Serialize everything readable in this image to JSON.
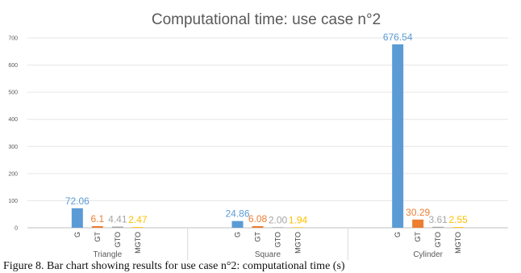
{
  "chart_data": {
    "type": "bar",
    "title": "Computational time: use case n°2",
    "xlabel": "",
    "ylabel": "",
    "ylim": [
      0,
      700
    ],
    "yticks": [
      0,
      100,
      200,
      300,
      400,
      500,
      600,
      700
    ],
    "grid": true,
    "legend": "none",
    "groups": [
      {
        "name": "Triangle",
        "bars": [
          {
            "label": "G",
            "value": 72.06,
            "display": "72.06"
          },
          {
            "label": "GT",
            "value": 6.1,
            "display": "6.1"
          },
          {
            "label": "GTO",
            "value": 4.41,
            "display": "4.41"
          },
          {
            "label": "MGTO",
            "value": 2.47,
            "display": "2.47"
          }
        ]
      },
      {
        "name": "Square",
        "bars": [
          {
            "label": "G",
            "value": 24.86,
            "display": "24.86"
          },
          {
            "label": "GT",
            "value": 6.08,
            "display": "6.08"
          },
          {
            "label": "GTO",
            "value": 2.0,
            "display": "2.00"
          },
          {
            "label": "MGTO",
            "value": 1.94,
            "display": "1.94"
          }
        ]
      },
      {
        "name": "Cylinder",
        "bars": [
          {
            "label": "G",
            "value": 676.54,
            "display": "676.54"
          },
          {
            "label": "GT",
            "value": 30.29,
            "display": "30.29"
          },
          {
            "label": "GTO",
            "value": 3.61,
            "display": "3.61"
          },
          {
            "label": "MGTO",
            "value": 2.55,
            "display": "2.55"
          }
        ]
      }
    ],
    "colors": {
      "G": "#5b9bd5",
      "GT": "#ed7d31",
      "GTO": "#a5a5a5",
      "MGTO": "#ffc000"
    }
  },
  "caption": "Figure 8. Bar chart showing results for use case n°2: computational time (s)"
}
